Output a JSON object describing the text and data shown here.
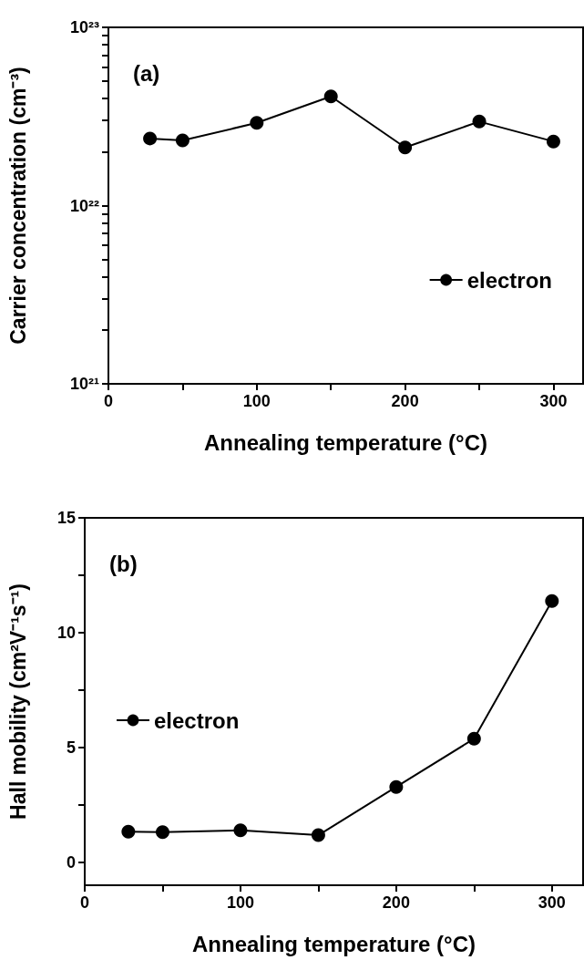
{
  "chart_data": [
    {
      "type": "line",
      "annotations": [
        "(a)"
      ],
      "xlabel": "Annealing temperature (°C)",
      "ylabel": "Carrier concentration (cm⁻³)",
      "log": "y",
      "xlim": [
        0,
        320
      ],
      "xticks": [
        0,
        {
          "value": 50,
          "label": null
        },
        100,
        {
          "value": 150,
          "label": null
        },
        200,
        {
          "value": 250,
          "label": null
        },
        300
      ],
      "ylim": [
        1e+21,
        1e+23
      ],
      "yticks": [
        {
          "value": 1e+21,
          "label": "10²¹"
        },
        {
          "value": 2e+21,
          "label": null
        },
        {
          "value": 3e+21,
          "label": null
        },
        {
          "value": 4e+21,
          "label": null
        },
        {
          "value": 5e+21,
          "label": null
        },
        {
          "value": 6e+21,
          "label": null
        },
        {
          "value": 7e+21,
          "label": null
        },
        {
          "value": 8e+21,
          "label": null
        },
        {
          "value": 9e+21,
          "label": null
        },
        {
          "value": 1e+22,
          "label": "10²²"
        },
        {
          "value": 2e+22,
          "label": null
        },
        {
          "value": 3e+22,
          "label": null
        },
        {
          "value": 4e+22,
          "label": null
        },
        {
          "value": 5e+22,
          "label": null
        },
        {
          "value": 6e+22,
          "label": null
        },
        {
          "value": 7e+22,
          "label": null
        },
        {
          "value": 8e+22,
          "label": null
        },
        {
          "value": 9e+22,
          "label": null
        },
        {
          "value": 1e+23,
          "label": "10²³"
        }
      ],
      "x": [
        28,
        50,
        100,
        150,
        200,
        250,
        300
      ],
      "marker": "circle",
      "legend": "lower right",
      "grid": false,
      "series": [
        {
          "name": "electron",
          "color": "#000000",
          "values": [
            2.38e+22,
            2.32e+22,
            2.91e+22,
            4.1e+22,
            2.12e+22,
            2.96e+22,
            2.29e+22
          ]
        }
      ]
    },
    {
      "type": "line",
      "annotations": [
        "(b)"
      ],
      "xlabel": "Annealing temperature (°C)",
      "ylabel": "Hall mobility (cm²V⁻¹s⁻¹)",
      "xlim": [
        0,
        320
      ],
      "xticks": [
        0,
        {
          "value": 50,
          "label": null
        },
        100,
        {
          "value": 150,
          "label": null
        },
        200,
        {
          "value": 250,
          "label": null
        },
        300
      ],
      "ylim": [
        -1,
        15
      ],
      "yticks": [
        0,
        {
          "value": 2.5,
          "label": null
        },
        5,
        {
          "value": 7.5,
          "label": null
        },
        10,
        {
          "value": 12.5,
          "label": null
        },
        15
      ],
      "x": [
        28,
        50,
        100,
        150,
        200,
        250,
        300
      ],
      "marker": "circle",
      "legend": "center left",
      "grid": false,
      "series": [
        {
          "name": "electron",
          "color": "#000000",
          "values": [
            1.33,
            1.31,
            1.39,
            1.18,
            3.28,
            5.38,
            11.38
          ]
        }
      ]
    }
  ]
}
